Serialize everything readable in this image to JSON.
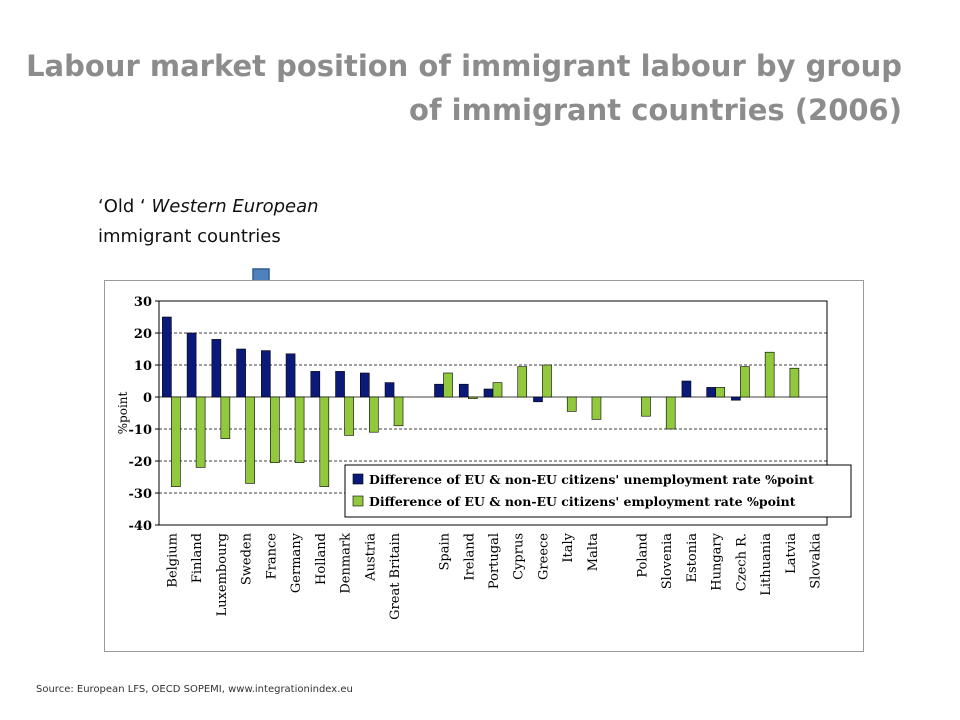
{
  "title_line1": "Labour market position of immigrant labour by group",
  "title_line2": "of immigrant countries (2006)",
  "subtitle_quote": "‘Old ‘",
  "subtitle_italic": "Western European",
  "subtitle_line2": "immigrant countries",
  "source": "Source: European LFS, OECD SOPEMI, www.integrationindex.eu",
  "colors": {
    "title": "#8c8c8c",
    "arrow": "#4f81bd",
    "unemployment": "#0b1a7a",
    "employment": "#92c83e"
  },
  "chart_data": {
    "type": "bar",
    "ylabel": "%point",
    "ylim": [
      -40,
      30
    ],
    "yticks": [
      30,
      20,
      10,
      0,
      -10,
      -20,
      -30,
      -40
    ],
    "grid": "dashed horizontal",
    "legend_position": "bottom-right",
    "categories": [
      "Belgium",
      "Finland",
      "Luxembourg",
      "Sweden",
      "France",
      "Germany",
      "Holland",
      "Denmark",
      "Austria",
      "Great Britain",
      "",
      "Spain",
      "Ireland",
      "Portugal",
      "Cyprus",
      "Greece",
      "Italy",
      "Malta",
      "",
      "Poland",
      "Slovenia",
      "Estonia",
      "Hungary",
      "Czech R.",
      "Lithuania",
      "Latvia",
      "Slovakia"
    ],
    "series": [
      {
        "name": "Difference of EU & non-EU citizens' unemployment rate %point",
        "values": [
          25,
          20,
          18,
          15,
          14.5,
          13.5,
          8,
          8,
          7.5,
          4.5,
          null,
          4,
          4,
          2.5,
          0,
          -1.5,
          0,
          0,
          null,
          0,
          0,
          5,
          3,
          -1,
          0,
          0,
          0
        ]
      },
      {
        "name": "Difference of EU & non-EU citizens' employment rate %point",
        "values": [
          -28,
          -22,
          -13,
          -27,
          -20.5,
          -20.5,
          -28,
          -12,
          -11,
          -9,
          null,
          7.5,
          -0.5,
          4.5,
          9.5,
          10,
          -4.5,
          -7,
          null,
          -6,
          -10,
          0,
          3,
          9.5,
          14,
          9,
          0
        ]
      }
    ]
  }
}
